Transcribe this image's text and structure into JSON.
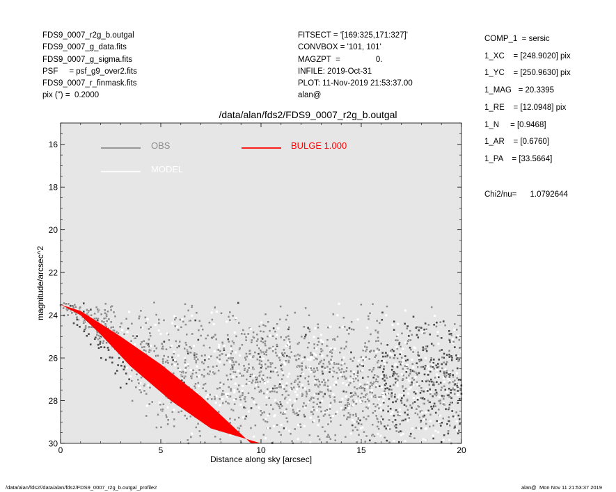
{
  "header_left": [
    "FDS9_0007_r2g_b.outgal",
    "FDS9_0007_g_data.fits",
    "FDS9_0007_g_sigma.fits",
    "PSF     = psf_g9_over2.fits",
    "FDS9_0007_r_finmask.fits",
    "pix (\") =  0.2000"
  ],
  "header_mid": [
    "FITSECT = '[169:325,171:327]'",
    "CONVBOX = '101, 101'",
    "MAGZPT  =                0.",
    "INFILE: 2019-Oct-31",
    "PLOT: 11-Nov-2019 21:53:37.00",
    "alan@"
  ],
  "components": [
    "COMP_1  = sersic",
    "1_XC    = [248.9020] pix",
    "1_YC    = [250.9630] pix",
    "1_MAG   = 20.3395",
    "1_RE    = [12.0948] pix",
    "1_N     = [0.9468]",
    "1_AR    = [0.6760]",
    "1_PA    = [33.5664]",
    "",
    "Chi2/nu=      1.0792644"
  ],
  "footer_left": "/data/alan/fds2//data/alan/fds2/FDS9_0007_r2g_b.outgal_profile2",
  "footer_right": "alan@  Mon Nov 11 21:53:37 2019",
  "colors": {
    "background": "#e6e6e6",
    "obs": "#8c8c8c",
    "obs_dark": "#4a4a4a",
    "model": "#ffffff",
    "bulge": "#ff0000"
  },
  "chart_data": {
    "type": "scatter",
    "title": "/data/alan/fds2/FDS9_0007_r2g_b.outgal",
    "xlabel": "Distance along sky [arcsec]",
    "ylabel": "magnitude/arcsec^2",
    "xlim": [
      0,
      20
    ],
    "ylim": [
      30,
      15
    ],
    "y_inverted": true,
    "x_ticks": [
      "0",
      "5",
      "10",
      "15",
      "20"
    ],
    "y_ticks": [
      "16",
      "18",
      "20",
      "22",
      "24",
      "26",
      "28",
      "30"
    ],
    "legend": [
      {
        "name": "OBS",
        "color": "#8c8c8c"
      },
      {
        "name": "MODEL",
        "color": "#ffffff"
      },
      {
        "name": "BULGE  1.000",
        "color": "#ff0000"
      }
    ],
    "series": [
      {
        "name": "BULGE  1.000",
        "description_upper_edge": {
          "x": [
            0.0,
            1.0,
            3.0,
            5.0,
            7.0,
            9.5
          ],
          "y": [
            23.5,
            23.8,
            25.0,
            26.3,
            27.8,
            30.0
          ]
        },
        "description_lower_edge": {
          "x": [
            0.0,
            1.0,
            2.0,
            3.5,
            5.5,
            7.5,
            10.0
          ],
          "y": [
            23.5,
            24.0,
            24.9,
            26.4,
            28.0,
            29.3,
            30.0
          ]
        }
      },
      {
        "name": "OBS",
        "x": [
          0.2,
          0.8,
          1.5,
          2.5,
          3.5,
          5.0,
          7.0,
          10.0,
          13.0,
          16.0,
          19.0
        ],
        "y": [
          23.5,
          23.7,
          24.3,
          25.0,
          25.8,
          26.4,
          26.9,
          27.1,
          27.2,
          27.3,
          27.2
        ]
      }
    ],
    "grid": false,
    "legend_placement": "top"
  }
}
